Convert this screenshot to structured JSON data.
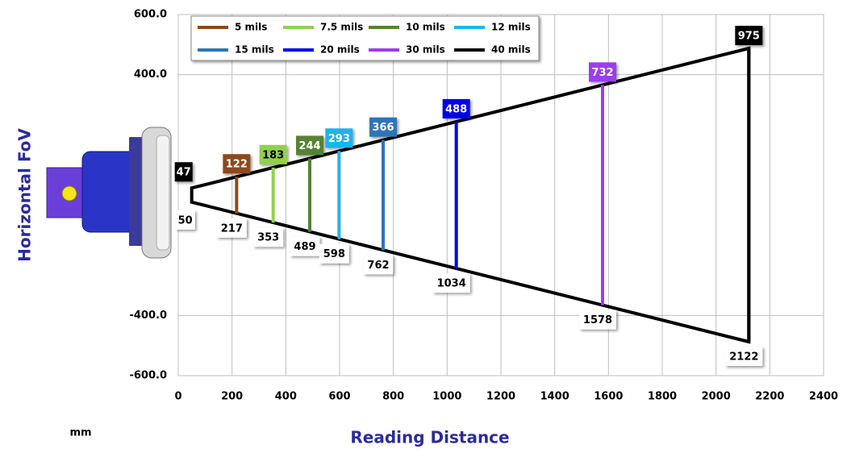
{
  "chart_data": {
    "type": "fov",
    "xlabel": "Reading Distance",
    "ylabel": "Horizontal FoV",
    "unit": "mm",
    "xlim": [
      0,
      2400
    ],
    "xticks": [
      0,
      200,
      400,
      600,
      800,
      1000,
      1200,
      1400,
      1600,
      1800,
      2000,
      2200,
      2400
    ],
    "ylim": [
      -600,
      600
    ],
    "yticks": [
      {
        "value": 600,
        "label": "600.0"
      },
      {
        "value": 400,
        "label": "400.0"
      },
      {
        "value": -400,
        "label": "-400.0"
      },
      {
        "value": -600,
        "label": "-600.0"
      }
    ],
    "grid": true,
    "legend": "upper left",
    "near": {
      "distance": 50,
      "fov": 47
    },
    "series": [
      {
        "name": "5 mils",
        "color": "#8b4a1c",
        "distance": 217,
        "fov": 122
      },
      {
        "name": "7.5 mils",
        "color": "#92d050",
        "distance": 353,
        "fov": 183
      },
      {
        "name": "10 mils",
        "color": "#548235",
        "distance": 489,
        "fov": 244
      },
      {
        "name": "12 mils",
        "color": "#1fb4ea",
        "distance": 598,
        "fov": 293
      },
      {
        "name": "15 mils",
        "color": "#2e75b6",
        "distance": 762,
        "fov": 366
      },
      {
        "name": "20 mils",
        "color": "#0000f0",
        "distance": 1034,
        "fov": 488
      },
      {
        "name": "30 mils",
        "color": "#9b3cf0",
        "distance": 1578,
        "fov": 732
      },
      {
        "name": "40 mils",
        "color": "#000000",
        "distance": 2122,
        "fov": 975
      }
    ]
  }
}
